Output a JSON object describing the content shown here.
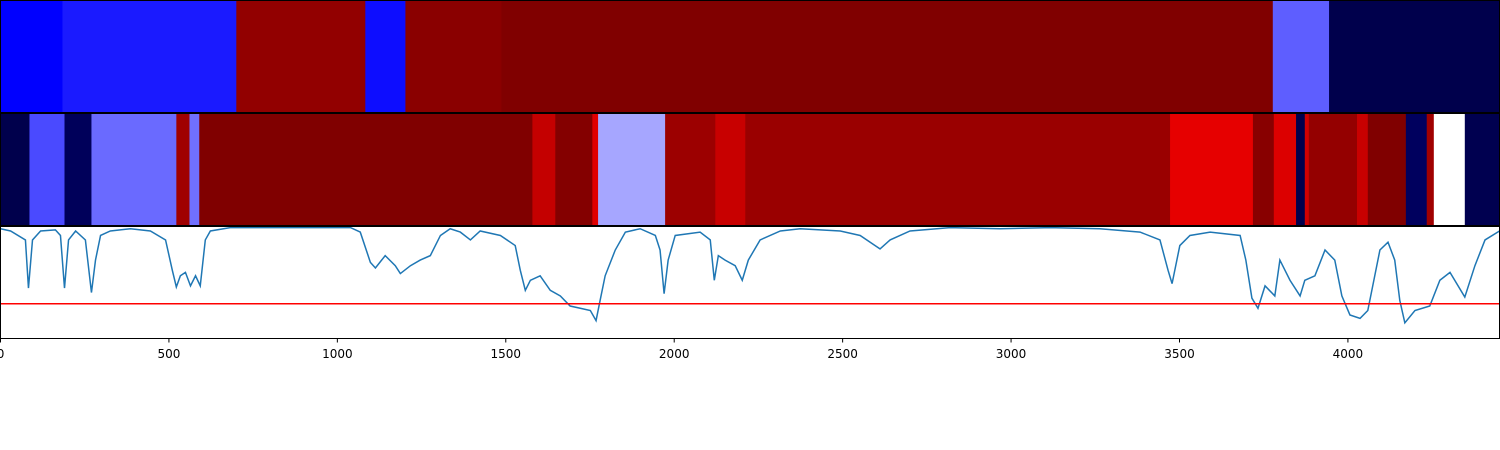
{
  "chart_data": [
    {
      "type": "strip",
      "xlim": [
        0,
        4450
      ],
      "edges": [
        0,
        184,
        700,
        1083,
        1202,
        1487,
        3777,
        3944,
        4450
      ],
      "colors": [
        "#0000ff",
        "#1a1aff",
        "#920000",
        "#0d0dff",
        "#8a0000",
        "#800000",
        "#5e5eff",
        "#00004c"
      ]
    },
    {
      "type": "strip",
      "xlim": [
        0,
        4450
      ],
      "edges": [
        0,
        86,
        190,
        270,
        522,
        561,
        590,
        1579,
        1647,
        1757,
        1774,
        1973,
        2122,
        2211,
        3472,
        3718,
        3780,
        3846,
        3872,
        3884,
        4027,
        4059,
        4172,
        4234,
        4255,
        4347,
        4450
      ],
      "colors": [
        "#00004c",
        "#4a4aff",
        "#00005a",
        "#6a6aff",
        "#a00000",
        "#7070ff",
        "#800000",
        "#c40000",
        "#840000",
        "#e00000",
        "#a6a6ff",
        "#9c0000",
        "#c80000",
        "#9a0000",
        "#e60000",
        "#880000",
        "#dc0000",
        "#00004c",
        "#d00000",
        "#940000",
        "#c80000",
        "#800000",
        "#00005e",
        "#a00000",
        "#ffffff",
        "#000050"
      ]
    },
    {
      "type": "line",
      "xlim": [
        0,
        4450
      ],
      "ylim": [
        0,
        1
      ],
      "xticks": [
        0,
        500,
        1000,
        1500,
        2000,
        2500,
        3000,
        3500,
        4000
      ],
      "color": "#1f77b4",
      "hline": 0.31,
      "hline_color": "#ff0000",
      "x": [
        0,
        30,
        74,
        83,
        95,
        119,
        163,
        178,
        190,
        202,
        223,
        252,
        270,
        282,
        297,
        326,
        386,
        445,
        490,
        510,
        522,
        534,
        549,
        564,
        579,
        593,
        608,
        623,
        682,
        1039,
        1068,
        1098,
        1113,
        1142,
        1172,
        1187,
        1217,
        1246,
        1276,
        1306,
        1335,
        1365,
        1395,
        1424,
        1484,
        1528,
        1543,
        1558,
        1573,
        1602,
        1632,
        1662,
        1691,
        1721,
        1751,
        1768,
        1780,
        1795,
        1825,
        1855,
        1899,
        1944,
        1958,
        1970,
        1982,
        2003,
        2077,
        2107,
        2119,
        2131,
        2151,
        2181,
        2202,
        2220,
        2255,
        2315,
        2374,
        2493,
        2552,
        2596,
        2611,
        2641,
        2700,
        2819,
        2967,
        3116,
        3264,
        3383,
        3442,
        3466,
        3478,
        3501,
        3531,
        3591,
        3680,
        3697,
        3715,
        3733,
        3754,
        3783,
        3798,
        3828,
        3858,
        3872,
        3902,
        3932,
        3961,
        3982,
        4006,
        4036,
        4059,
        4071,
        4095,
        4119,
        4139,
        4154,
        4169,
        4199,
        4243,
        4273,
        4303,
        4347,
        4377,
        4407,
        4450
      ],
      "values": [
        0.98,
        0.96,
        0.88,
        0.45,
        0.88,
        0.96,
        0.97,
        0.92,
        0.45,
        0.88,
        0.96,
        0.88,
        0.41,
        0.7,
        0.92,
        0.96,
        0.98,
        0.96,
        0.88,
        0.61,
        0.46,
        0.56,
        0.59,
        0.47,
        0.56,
        0.47,
        0.88,
        0.96,
        0.99,
        0.99,
        0.95,
        0.68,
        0.63,
        0.74,
        0.65,
        0.58,
        0.65,
        0.7,
        0.74,
        0.92,
        0.98,
        0.95,
        0.88,
        0.96,
        0.92,
        0.83,
        0.61,
        0.43,
        0.52,
        0.56,
        0.43,
        0.38,
        0.29,
        0.27,
        0.25,
        0.16,
        0.34,
        0.56,
        0.79,
        0.95,
        0.98,
        0.92,
        0.79,
        0.4,
        0.7,
        0.92,
        0.95,
        0.88,
        0.52,
        0.74,
        0.7,
        0.65,
        0.52,
        0.7,
        0.88,
        0.96,
        0.98,
        0.96,
        0.92,
        0.83,
        0.8,
        0.88,
        0.96,
        0.99,
        0.98,
        0.99,
        0.98,
        0.95,
        0.88,
        0.61,
        0.49,
        0.83,
        0.92,
        0.95,
        0.92,
        0.7,
        0.36,
        0.27,
        0.47,
        0.38,
        0.7,
        0.52,
        0.38,
        0.52,
        0.56,
        0.79,
        0.7,
        0.38,
        0.21,
        0.18,
        0.25,
        0.43,
        0.79,
        0.86,
        0.7,
        0.34,
        0.14,
        0.25,
        0.29,
        0.52,
        0.59,
        0.37,
        0.65,
        0.88,
        0.96
      ]
    }
  ]
}
